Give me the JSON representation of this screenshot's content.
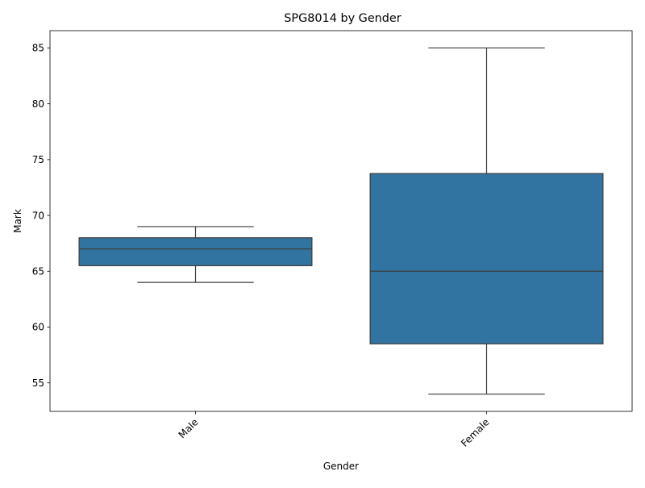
{
  "chart_data": {
    "type": "box",
    "title": "SPG8014 by Gender",
    "xlabel": "Gender",
    "ylabel": "Mark",
    "ylim": [
      52.45,
      86.55
    ],
    "yticks": [
      55,
      60,
      65,
      70,
      75,
      80,
      85
    ],
    "categories": [
      "Male",
      "Female"
    ],
    "boxes": [
      {
        "category": "Male",
        "whisker_low": 64,
        "q1": 65.5,
        "median": 67,
        "q3": 68,
        "whisker_high": 69
      },
      {
        "category": "Female",
        "whisker_low": 54,
        "q1": 58.5,
        "median": 65,
        "q3": 73.75,
        "whisker_high": 85
      }
    ],
    "tick_rotation_x": 45,
    "grid": false,
    "colors": {
      "box_fill": "#3274a1",
      "line": "#3d3d3d",
      "axis": "#000000"
    }
  }
}
